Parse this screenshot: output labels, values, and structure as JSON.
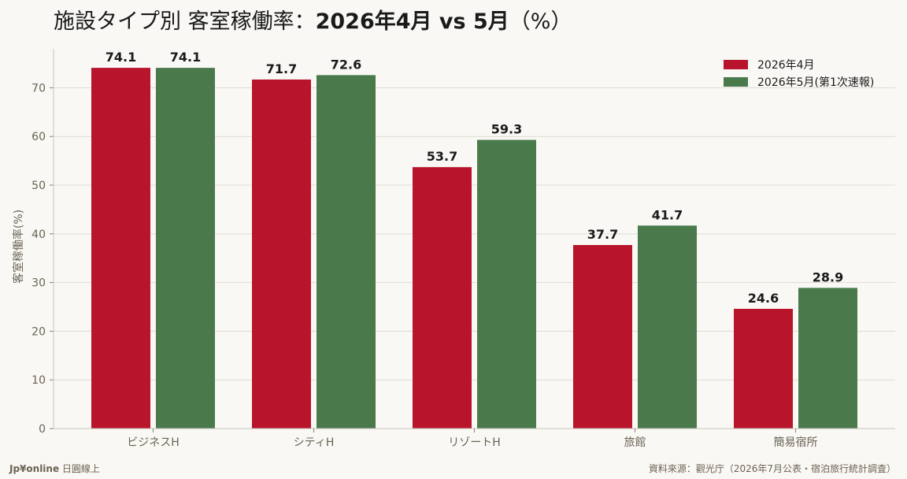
{
  "header": {
    "title_prefix": "施設タイプ別 客室稼働率：",
    "title_bold": "2026年4月 vs 5月",
    "title_suffix": "（%）"
  },
  "footer": {
    "brand_bold": "Jp¥online",
    "brand_rest": " 日圓線上",
    "source": "資料來源：觀光庁（2026年7月公表・宿泊旅行統計調査）"
  },
  "colors": {
    "april": "#b8142c",
    "may": "#4a7a4c",
    "grid": "#dedbd2",
    "axis": "#c9c5bb"
  },
  "chart_data": {
    "type": "bar",
    "title": "施設タイプ別 客室稼働率：2026年4月 vs 5月（%）",
    "xlabel": "",
    "ylabel": "客室稼働率(%)",
    "categories": [
      "ビジネスH",
      "シティH",
      "リゾートH",
      "旅館",
      "簡易宿所"
    ],
    "series": [
      {
        "name": "2026年4月",
        "values": [
          74.1,
          71.7,
          53.7,
          37.7,
          24.6
        ]
      },
      {
        "name": "2026年5月(第1次速報)",
        "values": [
          74.1,
          72.6,
          59.3,
          41.7,
          28.9
        ]
      }
    ],
    "ylim": [
      0,
      78
    ],
    "yticks": [
      0,
      10,
      20,
      30,
      40,
      50,
      60,
      70
    ],
    "grid": true,
    "legend_position": "top-right"
  }
}
